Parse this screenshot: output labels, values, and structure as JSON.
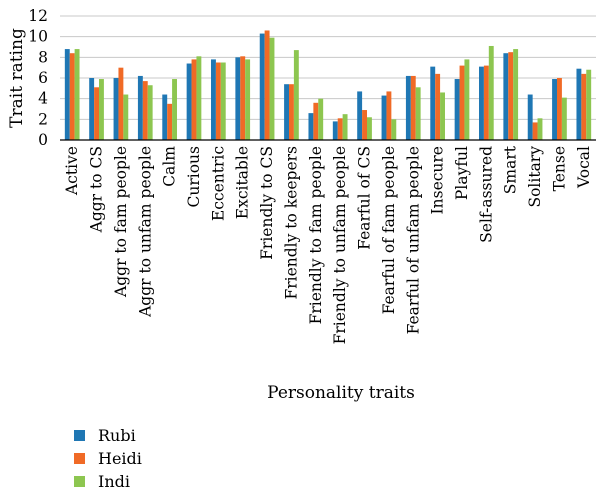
{
  "chart_data": {
    "type": "bar",
    "title": "",
    "xlabel": "Personality traits",
    "ylabel": "Trait rating",
    "ylim": [
      0,
      12
    ],
    "yticks": [
      0,
      2,
      4,
      6,
      8,
      10,
      12
    ],
    "grid": true,
    "legend_position": "bottom-left",
    "categories": [
      "Active",
      "Aggr to CS",
      "Aggr to fam people",
      "Aggr to unfam people",
      "Calm",
      "Curious",
      "Eccentric",
      "Excitable",
      "Friendly to CS",
      "Friendly to keepers",
      "Friendly to fam people",
      "Friendly to unfam people",
      "Fearful of CS",
      "Fearful of fam people",
      "Fearful of unfam people",
      "Insecure",
      "Playful",
      "Self-assured",
      "Smart",
      "Solitary",
      "Tense",
      "Vocal"
    ],
    "series": [
      {
        "name": "Rubi",
        "color": "#1f77b4",
        "values": [
          8.8,
          6.0,
          6.0,
          6.2,
          4.4,
          7.4,
          7.8,
          8.0,
          10.3,
          5.4,
          2.6,
          1.8,
          4.7,
          4.3,
          6.2,
          7.1,
          5.9,
          7.1,
          8.4,
          4.4,
          5.9,
          6.9
        ]
      },
      {
        "name": "Heidi",
        "color": "#f06a26",
        "values": [
          8.4,
          5.1,
          7.0,
          5.7,
          3.5,
          7.8,
          7.5,
          8.1,
          10.6,
          5.4,
          3.6,
          2.1,
          2.9,
          4.7,
          6.2,
          6.4,
          7.2,
          7.2,
          8.5,
          1.7,
          6.0,
          6.4
        ]
      },
      {
        "name": "Indi",
        "color": "#8dc650",
        "values": [
          8.8,
          5.9,
          4.4,
          5.3,
          5.9,
          8.1,
          7.5,
          7.8,
          9.9,
          8.7,
          4.0,
          2.5,
          2.2,
          2.0,
          5.1,
          4.6,
          7.8,
          9.1,
          8.8,
          2.1,
          4.1,
          6.8
        ]
      }
    ]
  }
}
